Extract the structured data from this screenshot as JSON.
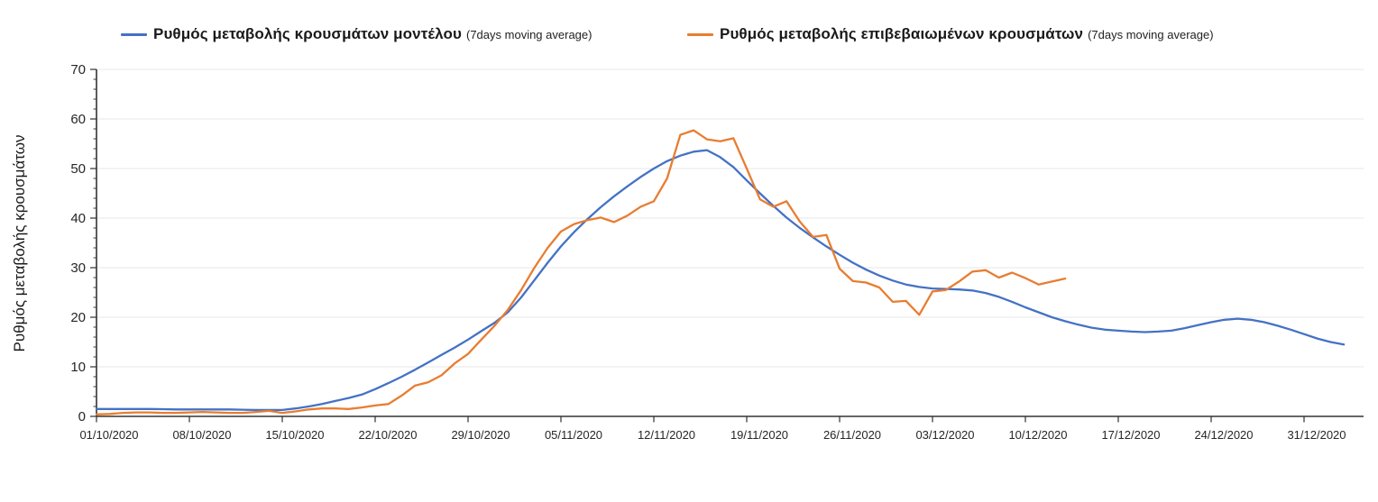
{
  "legend": {
    "items": [
      {
        "label": "Ρυθμός μεταβολής κρουσμάτων μοντέλου",
        "sub": "(7days moving average)",
        "color": "#4472C4"
      },
      {
        "label": "Ρυθμός μεταβολής επιβεβαιωμένων κρουσμάτων",
        "sub": "(7days moving average)",
        "color": "#E87D31"
      }
    ]
  },
  "chart_data": {
    "type": "line",
    "title": "",
    "xlabel": "",
    "ylabel": "Ρυθμός μεταβολής κρουσμάτων",
    "ylim": [
      0,
      70
    ],
    "ytick_step": 10,
    "y_minor_step": 2,
    "grid": "horizontal-major",
    "legend_position": "top",
    "x_tick_labels": [
      "01/10/2020",
      "08/10/2020",
      "15/10/2020",
      "22/10/2020",
      "29/10/2020",
      "05/11/2020",
      "12/11/2020",
      "19/11/2020",
      "26/11/2020",
      "03/12/2020",
      "10/12/2020",
      "17/12/2020",
      "24/12/2020",
      "31/12/2020"
    ],
    "x_tick_every_days": 7,
    "series": [
      {
        "name": "Ρυθμός μεταβολής κρουσμάτων μοντέλου (7days moving average)",
        "color": "#4472C4",
        "start_date": "01/10/2020",
        "step_days": 1,
        "values": [
          1.5,
          1.5,
          1.5,
          1.5,
          1.5,
          1.45,
          1.4,
          1.4,
          1.4,
          1.4,
          1.4,
          1.35,
          1.3,
          1.3,
          1.3,
          1.6,
          2.0,
          2.5,
          3.1,
          3.7,
          4.4,
          5.5,
          6.7,
          8.0,
          9.4,
          10.9,
          12.4,
          13.9,
          15.5,
          17.2,
          18.9,
          21.0,
          24.0,
          27.5,
          31.0,
          34.3,
          37.2,
          39.8,
          42.2,
          44.4,
          46.4,
          48.3,
          50.0,
          51.5,
          52.6,
          53.4,
          53.7,
          52.3,
          50.3,
          47.6,
          45.0,
          42.5,
          40.1,
          38.0,
          36.1,
          34.3,
          32.6,
          31.0,
          29.6,
          28.4,
          27.4,
          26.6,
          26.1,
          25.8,
          25.7,
          25.6,
          25.4,
          24.9,
          24.1,
          23.1,
          22.0,
          21.0,
          20.0,
          19.2,
          18.5,
          17.9,
          17.5,
          17.3,
          17.1,
          17.0,
          17.1,
          17.3,
          17.8,
          18.4,
          19.0,
          19.5,
          19.7,
          19.5,
          19.0,
          18.3,
          17.5,
          16.6,
          15.7,
          15.0,
          14.5
        ]
      },
      {
        "name": "Ρυθμός μεταβολής επιβεβαιωμένων κρουσμάτων (7days moving average)",
        "color": "#E87D31",
        "start_date": "01/10/2020",
        "step_days": 1,
        "values": [
          0.4,
          0.5,
          0.7,
          0.8,
          0.8,
          0.7,
          0.7,
          0.8,
          0.9,
          0.8,
          0.7,
          0.7,
          0.9,
          1.1,
          0.7,
          1.0,
          1.4,
          1.6,
          1.6,
          1.5,
          1.8,
          2.2,
          2.5,
          4.2,
          6.2,
          6.9,
          8.3,
          10.7,
          12.6,
          15.5,
          18.3,
          21.5,
          25.5,
          30.0,
          34.0,
          37.3,
          38.8,
          39.6,
          40.1,
          39.2,
          40.5,
          42.3,
          43.4,
          48.0,
          56.8,
          57.7,
          55.9,
          55.5,
          56.1,
          50.0,
          43.8,
          42.3,
          43.4,
          39.3,
          36.2,
          36.6,
          29.8,
          27.3,
          27.0,
          26.0,
          23.1,
          23.3,
          20.5,
          25.2,
          25.5,
          27.2,
          29.2,
          29.5,
          28.0,
          29.0,
          27.9,
          26.6,
          27.2,
          27.8
        ]
      }
    ]
  }
}
